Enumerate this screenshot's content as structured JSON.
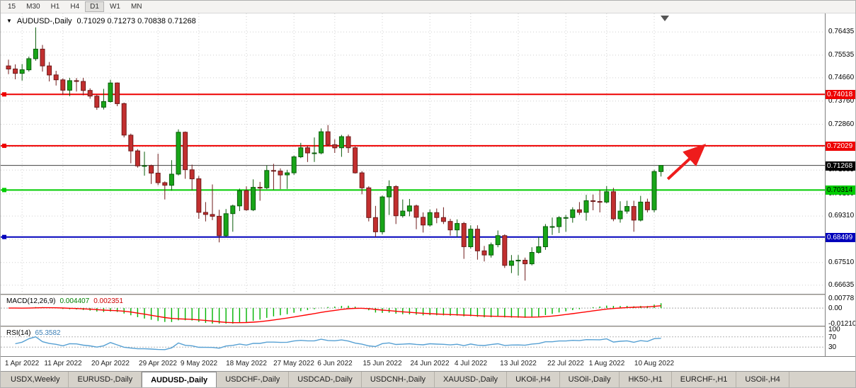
{
  "toolbar": {
    "timeframes": [
      {
        "label": "15",
        "active": false
      },
      {
        "label": "M30",
        "active": false
      },
      {
        "label": "H1",
        "active": false
      },
      {
        "label": "H4",
        "active": false
      },
      {
        "label": "D1",
        "active": true
      },
      {
        "label": "W1",
        "active": false
      },
      {
        "label": "MN",
        "active": false
      }
    ]
  },
  "chart_header": {
    "dropdown_icon": "▼",
    "symbol": "AUDUSD-,Daily",
    "ohlc": "0.71029 0.71273 0.70838 0.71268"
  },
  "price_axis": {
    "ticks": [
      0.76435,
      0.75535,
      0.7466,
      0.7376,
      0.7286,
      0.71985,
      0.71085,
      0.7016,
      0.6931,
      0.6841,
      0.6751,
      0.66635
    ],
    "badges": [
      {
        "value": "0.74018",
        "bg": "#ee0000",
        "fg": "#ffffff"
      },
      {
        "value": "0.72029",
        "bg": "#ee0000",
        "fg": "#ffffff"
      },
      {
        "value": "0.71268",
        "bg": "#000000",
        "fg": "#ffffff"
      },
      {
        "value": "0.70314",
        "bg": "#00cc00",
        "fg": "#000000"
      },
      {
        "value": "0.68499",
        "bg": "#0000bb",
        "fg": "#ffffff"
      }
    ]
  },
  "chart_data": {
    "type": "candlestick",
    "title": "AUDUSD-,Daily",
    "y_range": {
      "max": 0.7715,
      "min": 0.66297
    },
    "x_ticks": [
      {
        "index": 2,
        "label": "1 Apr 2022"
      },
      {
        "index": 8,
        "label": "11 Apr 2022"
      },
      {
        "index": 15,
        "label": "20 Apr 2022"
      },
      {
        "index": 22,
        "label": "29 Apr 2022"
      },
      {
        "index": 28,
        "label": "9 May 2022"
      },
      {
        "index": 35,
        "label": "18 May 2022"
      },
      {
        "index": 42,
        "label": "27 May 2022"
      },
      {
        "index": 48,
        "label": "6 Jun 2022"
      },
      {
        "index": 55,
        "label": "15 Jun 2022"
      },
      {
        "index": 62,
        "label": "24 Jun 2022"
      },
      {
        "index": 68,
        "label": "4 Jul 2022"
      },
      {
        "index": 75,
        "label": "13 Jul 2022"
      },
      {
        "index": 82,
        "label": "22 Jul 2022"
      },
      {
        "index": 88,
        "label": "1 Aug 2022"
      },
      {
        "index": 95,
        "label": "10 Aug 2022"
      }
    ],
    "candles": [
      [
        0.7512,
        0.7536,
        0.748,
        0.75
      ],
      [
        0.75,
        0.7518,
        0.746,
        0.7483
      ],
      [
        0.7483,
        0.7519,
        0.7455,
        0.7497
      ],
      [
        0.7497,
        0.7548,
        0.749,
        0.754
      ],
      [
        0.754,
        0.7661,
        0.7532,
        0.7577
      ],
      [
        0.7577,
        0.7593,
        0.749,
        0.7512
      ],
      [
        0.7512,
        0.7527,
        0.7452,
        0.7477
      ],
      [
        0.7477,
        0.7493,
        0.7436,
        0.7458
      ],
      [
        0.7458,
        0.7464,
        0.74,
        0.7418
      ],
      [
        0.7418,
        0.7466,
        0.7395,
        0.7455
      ],
      [
        0.7455,
        0.7465,
        0.7413,
        0.7452
      ],
      [
        0.7452,
        0.7466,
        0.7398,
        0.7417
      ],
      [
        0.7417,
        0.7425,
        0.7385,
        0.7395
      ],
      [
        0.7395,
        0.74,
        0.7342,
        0.7352
      ],
      [
        0.7352,
        0.7423,
        0.7343,
        0.7374
      ],
      [
        0.7374,
        0.7458,
        0.737,
        0.7446
      ],
      [
        0.7446,
        0.7448,
        0.7356,
        0.7366
      ],
      [
        0.7366,
        0.737,
        0.7235,
        0.7244
      ],
      [
        0.7244,
        0.725,
        0.7135,
        0.7183
      ],
      [
        0.7183,
        0.719,
        0.7118,
        0.7125
      ],
      [
        0.7125,
        0.718,
        0.7087,
        0.7126
      ],
      [
        0.7126,
        0.713,
        0.7055,
        0.7097
      ],
      [
        0.7097,
        0.7172,
        0.705,
        0.706
      ],
      [
        0.706,
        0.7065,
        0.6995,
        0.705
      ],
      [
        0.705,
        0.7147,
        0.7029,
        0.7093
      ],
      [
        0.7093,
        0.7266,
        0.7088,
        0.7255
      ],
      [
        0.7255,
        0.7258,
        0.7075,
        0.711
      ],
      [
        0.711,
        0.713,
        0.703,
        0.7075
      ],
      [
        0.7075,
        0.7086,
        0.692,
        0.6945
      ],
      [
        0.6945,
        0.6985,
        0.691,
        0.6937
      ],
      [
        0.6937,
        0.7053,
        0.6915,
        0.693
      ],
      [
        0.693,
        0.6955,
        0.6829,
        0.6855
      ],
      [
        0.6855,
        0.6958,
        0.685,
        0.694
      ],
      [
        0.694,
        0.6975,
        0.687,
        0.697
      ],
      [
        0.697,
        0.7037,
        0.695,
        0.7029
      ],
      [
        0.7029,
        0.7046,
        0.6951,
        0.6955
      ],
      [
        0.6955,
        0.7073,
        0.695,
        0.7042
      ],
      [
        0.7042,
        0.7063,
        0.699,
        0.704
      ],
      [
        0.704,
        0.7127,
        0.7035,
        0.7107
      ],
      [
        0.7107,
        0.7133,
        0.7033,
        0.7105
      ],
      [
        0.7105,
        0.7115,
        0.7035,
        0.709
      ],
      [
        0.709,
        0.711,
        0.7036,
        0.7098
      ],
      [
        0.7098,
        0.7165,
        0.709,
        0.716
      ],
      [
        0.716,
        0.7214,
        0.7155,
        0.7195
      ],
      [
        0.7195,
        0.7203,
        0.714,
        0.7175
      ],
      [
        0.7175,
        0.7235,
        0.714,
        0.7175
      ],
      [
        0.7175,
        0.727,
        0.717,
        0.7257
      ],
      [
        0.7257,
        0.7283,
        0.72,
        0.7207
      ],
      [
        0.7207,
        0.7228,
        0.7175,
        0.7195
      ],
      [
        0.7195,
        0.7245,
        0.716,
        0.7238
      ],
      [
        0.7238,
        0.7246,
        0.7175,
        0.7195
      ],
      [
        0.7195,
        0.72,
        0.7095,
        0.7098
      ],
      [
        0.7098,
        0.7105,
        0.7015,
        0.704
      ],
      [
        0.704,
        0.7046,
        0.691,
        0.6925
      ],
      [
        0.6925,
        0.697,
        0.685,
        0.687
      ],
      [
        0.687,
        0.701,
        0.686,
        0.7005
      ],
      [
        0.7005,
        0.7069,
        0.6935,
        0.7045
      ],
      [
        0.7045,
        0.705,
        0.69,
        0.6932
      ],
      [
        0.6932,
        0.6995,
        0.6925,
        0.695
      ],
      [
        0.695,
        0.6997,
        0.693,
        0.697
      ],
      [
        0.697,
        0.6975,
        0.688,
        0.6926
      ],
      [
        0.6926,
        0.6945,
        0.6867,
        0.6896
      ],
      [
        0.6896,
        0.6956,
        0.689,
        0.6944
      ],
      [
        0.6944,
        0.696,
        0.6903,
        0.6925
      ],
      [
        0.6925,
        0.6965,
        0.69,
        0.691
      ],
      [
        0.691,
        0.692,
        0.6855,
        0.6877
      ],
      [
        0.6877,
        0.6918,
        0.685,
        0.6902
      ],
      [
        0.6902,
        0.6908,
        0.6765,
        0.6812
      ],
      [
        0.6812,
        0.6895,
        0.6805,
        0.688
      ],
      [
        0.688,
        0.6895,
        0.6762,
        0.6796
      ],
      [
        0.6796,
        0.6815,
        0.6755,
        0.678
      ],
      [
        0.678,
        0.6828,
        0.677,
        0.682
      ],
      [
        0.682,
        0.6875,
        0.681,
        0.6855
      ],
      [
        0.6855,
        0.686,
        0.673,
        0.674
      ],
      [
        0.674,
        0.678,
        0.671,
        0.6757
      ],
      [
        0.6757,
        0.678,
        0.67,
        0.676
      ],
      [
        0.676,
        0.677,
        0.6681,
        0.6746
      ],
      [
        0.6746,
        0.681,
        0.674,
        0.679
      ],
      [
        0.679,
        0.685,
        0.6785,
        0.6812
      ],
      [
        0.6812,
        0.69,
        0.68,
        0.689
      ],
      [
        0.689,
        0.6925,
        0.6858,
        0.689
      ],
      [
        0.689,
        0.693,
        0.6865,
        0.6925
      ],
      [
        0.6925,
        0.6935,
        0.687,
        0.6925
      ],
      [
        0.6925,
        0.6965,
        0.6905,
        0.6955
      ],
      [
        0.6955,
        0.6985,
        0.6935,
        0.6945
      ],
      [
        0.6945,
        0.7013,
        0.6913,
        0.699
      ],
      [
        0.699,
        0.7014,
        0.6953,
        0.6987
      ],
      [
        0.6987,
        0.7032,
        0.6945,
        0.6985
      ],
      [
        0.6985,
        0.7047,
        0.698,
        0.7025
      ],
      [
        0.7025,
        0.704,
        0.6911,
        0.692
      ],
      [
        0.692,
        0.6988,
        0.6905,
        0.695
      ],
      [
        0.695,
        0.699,
        0.694,
        0.6968
      ],
      [
        0.6968,
        0.699,
        0.687,
        0.6915
      ],
      [
        0.6915,
        0.7009,
        0.691,
        0.6985
      ],
      [
        0.6985,
        0.6998,
        0.6945,
        0.6955
      ],
      [
        0.6955,
        0.711,
        0.6945,
        0.7103
      ],
      [
        0.71029,
        0.71273,
        0.70838,
        0.71268
      ]
    ],
    "hlines": [
      {
        "price": 0.74018,
        "color": "#ee0000",
        "width": 2,
        "handle": true
      },
      {
        "price": 0.72029,
        "color": "#ee0000",
        "width": 2,
        "handle": true
      },
      {
        "price": 0.71268,
        "color": "#404040",
        "width": 1,
        "handle": false
      },
      {
        "price": 0.70314,
        "color": "#00cc00",
        "width": 2,
        "handle": true
      },
      {
        "price": 0.68499,
        "color": "#0000bb",
        "width": 2,
        "handle": true
      }
    ],
    "arrow": {
      "from_index": 97.0,
      "from_price": 0.7074,
      "to_index": 102.0,
      "to_price": 0.7196,
      "color": "#ee1c1c"
    },
    "colors": {
      "up": "#18a518",
      "up_stroke": "#0a5c0a",
      "down": "#c22f2f",
      "down_stroke": "#6f1b1b",
      "grid": "#cfcfcf",
      "macd_hist": "#00b300",
      "macd_signal": "#ff0000",
      "rsi_line": "#56a0d3"
    },
    "macd": {
      "name": "MACD(12,26,9)",
      "value_main": "0.004407",
      "value_signal": "0.002351",
      "axis_labels": [
        {
          "value": 0.00778,
          "text": "0.00778"
        },
        {
          "value": 0,
          "text": "0.00"
        },
        {
          "value": -0.0121,
          "text": "-0.01210"
        }
      ],
      "scale": {
        "max": 0.00778,
        "min": -0.0121
      }
    },
    "rsi": {
      "name": "RSI(14)",
      "value": "65.3582",
      "levels": [
        70,
        30
      ],
      "axis_labels": [
        {
          "value": 100,
          "text": "100"
        },
        {
          "value": 70,
          "text": "70"
        },
        {
          "value": 30,
          "text": "30"
        }
      ]
    }
  },
  "tabs": {
    "items": [
      {
        "label": "USDX,Weekly",
        "active": false
      },
      {
        "label": "EURUSD-,Daily",
        "active": false
      },
      {
        "label": "AUDUSD-,Daily",
        "active": true
      },
      {
        "label": "USDCHF-,Daily",
        "active": false
      },
      {
        "label": "USDCAD-,Daily",
        "active": false
      },
      {
        "label": "USDCNH-,Daily",
        "active": false
      },
      {
        "label": "XAUUSD-,Daily",
        "active": false
      },
      {
        "label": "UKOil-,H4",
        "active": false
      },
      {
        "label": "USOil-,Daily",
        "active": false
      },
      {
        "label": "HK50-,H1",
        "active": false
      },
      {
        "label": "EURCHF-,H1",
        "active": false
      },
      {
        "label": "USOil-,H4",
        "active": false
      }
    ]
  }
}
